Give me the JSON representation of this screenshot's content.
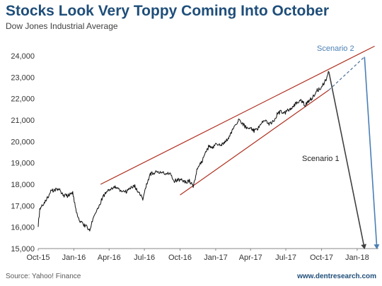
{
  "header": {
    "title": "Stocks Look Very Toppy Coming Into October",
    "subtitle": "Dow Jones Industrial Average"
  },
  "footer": {
    "source": "Source: Yahoo! Finance",
    "website": "www.dentresearch.com"
  },
  "colors": {
    "price_line": "#111111",
    "channel": "#b03020",
    "scenario1": "#404040",
    "scenario2": "#4a7fb5",
    "projection": "#4a6f9a",
    "title": "#1f4e79"
  },
  "chart_data": {
    "type": "line",
    "title": "Stocks Look Very Toppy Coming Into October",
    "subtitle": "Dow Jones Industrial Average",
    "xlabel": "",
    "ylabel": "",
    "xlim": [
      "2015-10-01",
      "2018-02-25"
    ],
    "ylim": [
      15000,
      24000
    ],
    "grid": false,
    "x_ticks": [
      "Oct-15",
      "Jan-16",
      "Apr-16",
      "Jul-16",
      "Oct-16",
      "Jan-17",
      "Apr-17",
      "Jul-17",
      "Oct-17",
      "Jan-18"
    ],
    "x_tick_dates": [
      "2015-10-01",
      "2016-01-01",
      "2016-04-01",
      "2016-07-01",
      "2016-10-01",
      "2017-01-01",
      "2017-04-01",
      "2017-07-01",
      "2017-10-01",
      "2018-01-01"
    ],
    "y_ticks": [
      15000,
      16000,
      17000,
      18000,
      19000,
      20000,
      21000,
      22000,
      23000,
      24000
    ],
    "y_tick_labels": [
      "15,000",
      "16,000",
      "17,000",
      "18,000",
      "19,000",
      "20,000",
      "21,000",
      "22,000",
      "23,000",
      "24,000"
    ],
    "series": [
      {
        "x": [
          "2015-10-01",
          "2015-10-05",
          "2015-10-15",
          "2015-10-25",
          "2015-11-04",
          "2015-11-14",
          "2015-11-24",
          "2015-12-04",
          "2015-12-14",
          "2015-12-29",
          "2016-01-06",
          "2016-01-12",
          "2016-01-20",
          "2016-01-28",
          "2016-02-05",
          "2016-02-11",
          "2016-02-18",
          "2016-02-26",
          "2016-03-05",
          "2016-03-15",
          "2016-03-25",
          "2016-04-05",
          "2016-04-15",
          "2016-04-25",
          "2016-05-05",
          "2016-05-15",
          "2016-05-25",
          "2016-06-05",
          "2016-06-15",
          "2016-06-24",
          "2016-06-27",
          "2016-07-05",
          "2016-07-15",
          "2016-07-25",
          "2016-08-05",
          "2016-08-15",
          "2016-08-25",
          "2016-09-05",
          "2016-09-15",
          "2016-09-25",
          "2016-10-05",
          "2016-10-15",
          "2016-10-25",
          "2016-11-04",
          "2016-11-09",
          "2016-11-15",
          "2016-11-25",
          "2016-12-05",
          "2016-12-15",
          "2016-12-25",
          "2017-01-05",
          "2017-01-15",
          "2017-01-25",
          "2017-02-05",
          "2017-02-15",
          "2017-02-25",
          "2017-03-01",
          "2017-03-10",
          "2017-03-20",
          "2017-03-31",
          "2017-04-10",
          "2017-04-20",
          "2017-04-30",
          "2017-05-10",
          "2017-05-20",
          "2017-05-31",
          "2017-06-10",
          "2017-06-20",
          "2017-06-30",
          "2017-07-10",
          "2017-07-20",
          "2017-07-31",
          "2017-08-10",
          "2017-08-20",
          "2017-08-31",
          "2017-09-10",
          "2017-09-20",
          "2017-09-30",
          "2017-10-05",
          "2017-10-10",
          "2017-10-15",
          "2017-10-20"
        ],
        "values": [
          16100,
          16800,
          17100,
          17400,
          17700,
          17750,
          17800,
          17500,
          17450,
          17600,
          16800,
          16400,
          16200,
          16100,
          16000,
          15800,
          16300,
          16600,
          16900,
          17400,
          17600,
          17800,
          17900,
          17750,
          17700,
          17650,
          17800,
          17950,
          17650,
          17400,
          17200,
          17900,
          18450,
          18550,
          18550,
          18600,
          18450,
          18500,
          18150,
          18200,
          18250,
          18100,
          18150,
          17900,
          18300,
          18800,
          19000,
          19400,
          19800,
          19750,
          19900,
          19850,
          20000,
          20200,
          20600,
          20800,
          21050,
          20850,
          20650,
          20650,
          20500,
          20600,
          20900,
          20950,
          20800,
          21000,
          21300,
          21400,
          21350,
          21500,
          21650,
          21850,
          21900,
          21700,
          21900,
          22100,
          22400,
          22450,
          22650,
          22800,
          23000,
          23250
        ]
      }
    ],
    "channel_lines": {
      "upper": {
        "x": [
          "2016-03-10",
          "2018-02-15"
        ],
        "y": [
          18000,
          24450
        ]
      },
      "lower": {
        "x": [
          "2016-10-01",
          "2017-10-20"
        ],
        "y": [
          17500,
          22400
        ]
      }
    },
    "scenarios": [
      {
        "label": "Scenario 1",
        "path_x": [
          "2017-10-20",
          "2018-01-20"
        ],
        "path_y": [
          23250,
          15000
        ]
      },
      {
        "label": "Scenario 2",
        "path_x": [
          "2017-10-20",
          "2018-01-20",
          "2018-02-21"
        ],
        "path_y": [
          22400,
          23950,
          15000
        ],
        "projection_segments": 1
      }
    ]
  }
}
